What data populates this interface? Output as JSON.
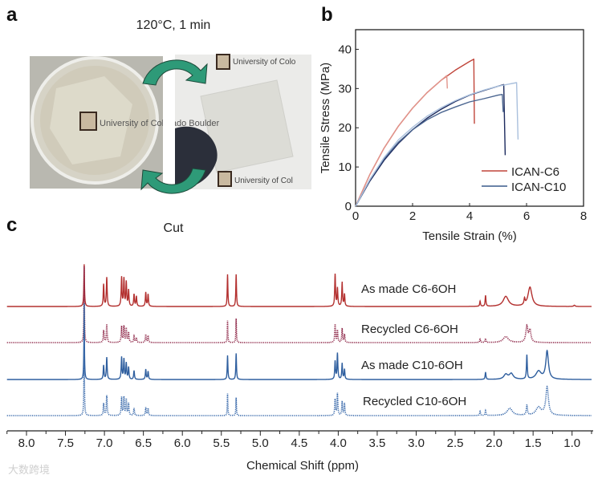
{
  "panel_a": {
    "label": "a",
    "top_caption": "120°C, 1 min",
    "bottom_caption": "Cut",
    "photo_text_left": "University of Colorado Boulder",
    "photo_text_right_top": "University of Colo",
    "photo_text_right_bottom": "University of Col",
    "colors": {
      "arrow": "#2e9a78",
      "glove": "#2b2f3a"
    }
  },
  "watermark": "大数跨境",
  "chart_data": [
    {
      "panel": "b",
      "type": "line",
      "label": "b",
      "xlabel": "Tensile Strain (%)",
      "ylabel": "Tensile Stress (MPa)",
      "xlim": [
        0,
        8
      ],
      "ylim": [
        0,
        45
      ],
      "xticks": [
        "0",
        "2",
        "4",
        "6",
        "8"
      ],
      "yticks": [
        "0",
        "10",
        "20",
        "30",
        "40"
      ],
      "legend_position": "bottom-right",
      "legend": [
        "ICAN-C6",
        "ICAN-C10"
      ],
      "series": [
        {
          "name": "ICAN-C6",
          "color": "#c0453a",
          "points": [
            [
              0,
              0
            ],
            [
              0.5,
              8.1
            ],
            [
              1,
              14.8
            ],
            [
              1.5,
              20.4
            ],
            [
              2,
              25.0
            ],
            [
              2.5,
              28.9
            ],
            [
              3,
              32.1
            ],
            [
              3.5,
              34.7
            ],
            [
              4,
              36.9
            ],
            [
              4.15,
              37.5
            ],
            [
              4.17,
              21
            ]
          ]
        },
        {
          "name": "ICAN-C6 (replicate)",
          "color": "#e2958c",
          "points": [
            [
              0,
              0
            ],
            [
              0.5,
              8.1
            ],
            [
              1,
              14.8
            ],
            [
              1.5,
              20.4
            ],
            [
              2,
              25.0
            ],
            [
              2.5,
              28.9
            ],
            [
              3,
              32.1
            ],
            [
              3.2,
              33.3
            ],
            [
              3.22,
              30
            ]
          ]
        },
        {
          "name": "ICAN-C10",
          "color": "#1c2a5e",
          "points": [
            [
              0,
              0
            ],
            [
              0.5,
              6.4
            ],
            [
              1,
              11.7
            ],
            [
              1.5,
              16.0
            ],
            [
              2,
              19.5
            ],
            [
              2.5,
              22.4
            ],
            [
              3,
              24.7
            ],
            [
              3.5,
              26.7
            ],
            [
              4,
              28.3
            ],
            [
              4.5,
              29.5
            ],
            [
              5,
              30.6
            ],
            [
              5.2,
              31.0
            ],
            [
              5.25,
              13
            ]
          ]
        },
        {
          "name": "ICAN-C10 (replicate 2)",
          "color": "#4a6590",
          "points": [
            [
              0,
              0
            ],
            [
              0.5,
              6.8
            ],
            [
              1,
              12.1
            ],
            [
              1.5,
              16.3
            ],
            [
              2,
              19.5
            ],
            [
              2.5,
              22.0
            ],
            [
              3,
              23.9
            ],
            [
              3.5,
              25.3
            ],
            [
              4,
              26.6
            ],
            [
              4.5,
              27.4
            ],
            [
              5,
              28.3
            ],
            [
              5.15,
              28.5
            ],
            [
              5.18,
              24
            ]
          ]
        },
        {
          "name": "ICAN-C10 (replicate 3)",
          "color": "#aac0dd",
          "points": [
            [
              0,
              0
            ],
            [
              0.5,
              6.8
            ],
            [
              1,
              12.4
            ],
            [
              1.5,
              16.9
            ],
            [
              2,
              20.1
            ],
            [
              2.5,
              22.9
            ],
            [
              3,
              25.1
            ],
            [
              3.5,
              26.9
            ],
            [
              4,
              28.4
            ],
            [
              4.5,
              29.6
            ],
            [
              5,
              30.6
            ],
            [
              5.5,
              31.3
            ],
            [
              5.65,
              31.5
            ],
            [
              5.7,
              17
            ]
          ]
        }
      ]
    },
    {
      "panel": "c",
      "type": "line",
      "label": "c",
      "xlabel": "Chemical Shift (ppm)",
      "xlim": [
        8.25,
        0.75
      ],
      "xticks": [
        "8.0",
        "7.5",
        "7.0",
        "6.5",
        "6.0",
        "5.5",
        "5.0",
        "4.5",
        "4.0",
        "3.5",
        "3.0",
        "2.5",
        "2.0",
        "1.5",
        "1.0"
      ],
      "peak_format": "[ppm, relative intensity, half-width ppm]",
      "series": [
        {
          "name": "As made C6-6OH",
          "color": "#b3302f",
          "dotted": false,
          "peaks": [
            [
              7.26,
              1.05,
              0.005
            ],
            [
              7.01,
              0.55,
              0.006
            ],
            [
              6.97,
              0.72,
              0.006
            ],
            [
              6.78,
              0.72,
              0.006
            ],
            [
              6.75,
              0.68,
              0.006
            ],
            [
              6.72,
              0.6,
              0.006
            ],
            [
              6.69,
              0.4,
              0.006
            ],
            [
              6.62,
              0.3,
              0.006
            ],
            [
              6.59,
              0.25,
              0.006
            ],
            [
              6.47,
              0.35,
              0.006
            ],
            [
              6.44,
              0.3,
              0.006
            ],
            [
              5.42,
              0.8,
              0.005
            ],
            [
              5.31,
              0.8,
              0.005
            ],
            [
              4.04,
              0.8,
              0.006
            ],
            [
              4.01,
              0.45,
              0.006
            ],
            [
              3.95,
              0.6,
              0.006
            ],
            [
              3.92,
              0.3,
              0.006
            ],
            [
              2.18,
              0.13,
              0.006
            ],
            [
              2.11,
              0.27,
              0.006
            ],
            [
              1.85,
              0.25,
              0.04
            ],
            [
              1.61,
              0.15,
              0.008
            ],
            [
              1.54,
              0.48,
              0.03
            ],
            [
              0.97,
              0.03,
              0.01
            ]
          ]
        },
        {
          "name": "Recycled C6-6OH",
          "color": "#8e2748",
          "dotted": true,
          "peaks": [
            [
              7.26,
              1.9,
              0.004
            ],
            [
              7.01,
              0.3,
              0.006
            ],
            [
              6.97,
              0.45,
              0.006
            ],
            [
              6.78,
              0.4,
              0.006
            ],
            [
              6.75,
              0.4,
              0.006
            ],
            [
              6.72,
              0.35,
              0.006
            ],
            [
              6.69,
              0.25,
              0.006
            ],
            [
              6.62,
              0.15,
              0.006
            ],
            [
              6.59,
              0.12,
              0.006
            ],
            [
              6.47,
              0.2,
              0.006
            ],
            [
              6.44,
              0.17,
              0.006
            ],
            [
              5.42,
              0.55,
              0.004
            ],
            [
              5.31,
              0.6,
              0.004
            ],
            [
              4.04,
              0.45,
              0.006
            ],
            [
              4.01,
              0.3,
              0.006
            ],
            [
              3.95,
              0.35,
              0.006
            ],
            [
              3.92,
              0.2,
              0.006
            ],
            [
              2.18,
              0.08,
              0.006
            ],
            [
              2.11,
              0.1,
              0.006
            ],
            [
              1.85,
              0.15,
              0.04
            ],
            [
              1.58,
              0.4,
              0.015
            ],
            [
              1.54,
              0.3,
              0.015
            ]
          ]
        },
        {
          "name": "As made C10-6OH",
          "color": "#2f5f9f",
          "dotted": false,
          "peaks": [
            [
              7.26,
              1.9,
              0.004
            ],
            [
              7.01,
              0.35,
              0.006
            ],
            [
              6.97,
              0.55,
              0.006
            ],
            [
              6.78,
              0.55,
              0.006
            ],
            [
              6.75,
              0.5,
              0.006
            ],
            [
              6.72,
              0.4,
              0.006
            ],
            [
              6.69,
              0.3,
              0.006
            ],
            [
              6.62,
              0.22,
              0.006
            ],
            [
              6.47,
              0.25,
              0.006
            ],
            [
              6.44,
              0.2,
              0.006
            ],
            [
              5.42,
              0.6,
              0.005
            ],
            [
              5.31,
              0.65,
              0.005
            ],
            [
              4.04,
              0.45,
              0.006
            ],
            [
              4.01,
              0.65,
              0.006
            ],
            [
              3.95,
              0.4,
              0.006
            ],
            [
              3.92,
              0.25,
              0.006
            ],
            [
              2.11,
              0.18,
              0.006
            ],
            [
              1.85,
              0.12,
              0.03
            ],
            [
              1.78,
              0.14,
              0.03
            ],
            [
              1.58,
              0.6,
              0.006
            ],
            [
              1.43,
              0.2,
              0.04
            ],
            [
              1.32,
              0.7,
              0.02
            ]
          ]
        },
        {
          "name": "Recycled C10-6OH",
          "color": "#3a6aab",
          "dotted": true,
          "peaks": [
            [
              7.26,
              1.9,
              0.004
            ],
            [
              7.01,
              0.3,
              0.006
            ],
            [
              6.97,
              0.5,
              0.006
            ],
            [
              6.78,
              0.45,
              0.006
            ],
            [
              6.75,
              0.45,
              0.006
            ],
            [
              6.72,
              0.4,
              0.006
            ],
            [
              6.69,
              0.3,
              0.006
            ],
            [
              6.62,
              0.18,
              0.006
            ],
            [
              6.47,
              0.2,
              0.006
            ],
            [
              6.44,
              0.18,
              0.006
            ],
            [
              5.42,
              0.55,
              0.004
            ],
            [
              5.31,
              0.45,
              0.004
            ],
            [
              4.04,
              0.4,
              0.006
            ],
            [
              4.01,
              0.55,
              0.006
            ],
            [
              3.95,
              0.35,
              0.006
            ],
            [
              3.92,
              0.3,
              0.006
            ],
            [
              2.18,
              0.1,
              0.006
            ],
            [
              2.11,
              0.12,
              0.006
            ],
            [
              1.8,
              0.18,
              0.04
            ],
            [
              1.58,
              0.25,
              0.008
            ],
            [
              1.43,
              0.2,
              0.04
            ],
            [
              1.32,
              0.7,
              0.02
            ]
          ]
        }
      ]
    }
  ]
}
